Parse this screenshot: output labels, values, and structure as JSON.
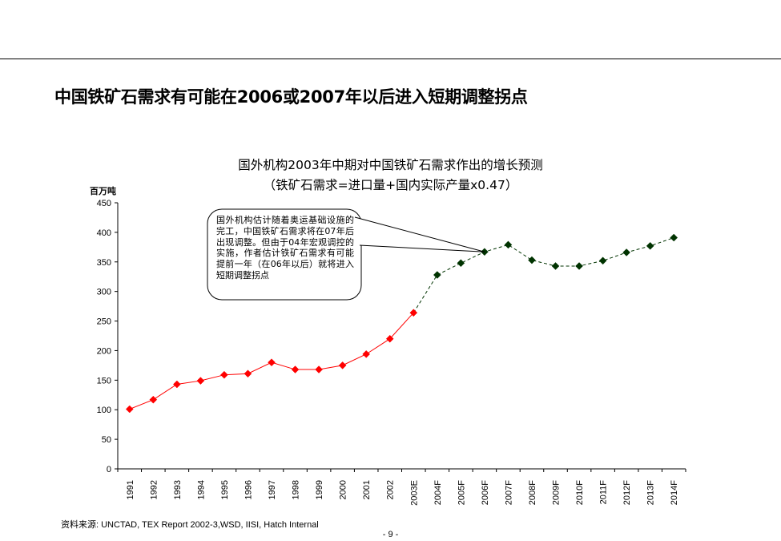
{
  "page": {
    "title": "中国铁矿石需求有可能在2006或2007年以后进入短期调整拐点",
    "source": "资料来源: UNCTAD, TEX Report 2002-3,WSD, IISI, Hatch Internal",
    "page_number": "- 9 -"
  },
  "chart_data": {
    "type": "line",
    "title": "国外机构2003年中期对中国铁矿石需求作出的增长预测",
    "subtitle": "（铁矿石需求=进口量+国内实际产量x0.47）",
    "ylabel": "百万吨",
    "xlabel": "",
    "ylim": [
      0,
      450
    ],
    "yticks": [
      0,
      50,
      100,
      150,
      200,
      250,
      300,
      350,
      400,
      450
    ],
    "grid": false,
    "categories": [
      "1991",
      "1992",
      "1993",
      "1994",
      "1995",
      "1996",
      "1997",
      "1998",
      "1999",
      "2000",
      "2001",
      "2002",
      "2003E",
      "2004F",
      "2005F",
      "2006F",
      "2007F",
      "2008F",
      "2009F",
      "2010F",
      "2011F",
      "2012F",
      "2013F",
      "2014F"
    ],
    "series": [
      {
        "kind": "historical",
        "color": "#ff0000",
        "line_style": "solid",
        "marker": "diamond",
        "values": [
          101,
          117,
          143,
          149,
          159,
          161,
          180,
          168,
          168,
          175,
          194,
          220,
          264,
          null,
          null,
          null,
          null,
          null,
          null,
          null,
          null,
          null,
          null,
          null
        ]
      },
      {
        "kind": "forecast",
        "color": "#003300",
        "line_style": "dashed",
        "marker": "diamond",
        "values": [
          null,
          null,
          null,
          null,
          null,
          null,
          null,
          null,
          null,
          null,
          null,
          null,
          264,
          328,
          348,
          367,
          379,
          353,
          343,
          343,
          352,
          366,
          377,
          391
        ]
      }
    ],
    "annotation": {
      "text": "国外机构估计随着奥运基础设施的完工，中国铁矿石需求将在07年后出现调整。但由于04年宏观调控的实施，作者估计铁矿石需求有可能提前一年（在06年以后）就将进入短期调整拐点",
      "points_to": "2006F"
    }
  }
}
